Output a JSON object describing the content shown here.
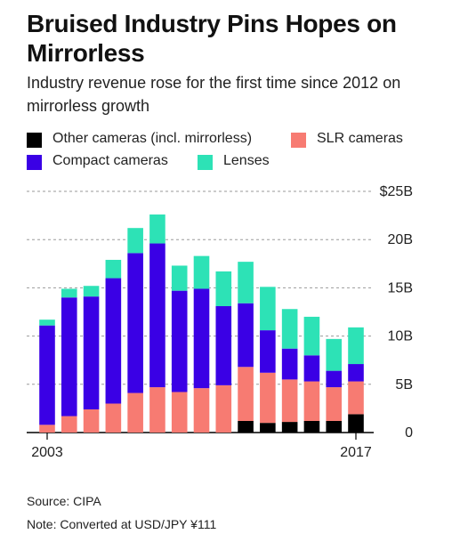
{
  "header": {
    "title": "Bruised Industry Pins Hopes on Mirrorless",
    "subtitle": "Industry revenue rose for the first time since 2012 on mirrorless growth"
  },
  "legend": [
    {
      "key": "other",
      "label": "Other cameras (incl. mirrorless)",
      "color": "#000000"
    },
    {
      "key": "slr",
      "label": "SLR cameras",
      "color": "#f77b72"
    },
    {
      "key": "compact",
      "label": "Compact cameras",
      "color": "#3a00e5"
    },
    {
      "key": "lenses",
      "label": "Lenses",
      "color": "#2de2b6"
    }
  ],
  "footer": {
    "source": "Source: CIPA",
    "note": "Note: Converted at USD/JPY ¥111"
  },
  "chart_data": {
    "type": "bar",
    "stacked": true,
    "categories": [
      "2003",
      "2004",
      "2005",
      "2006",
      "2007",
      "2008",
      "2009",
      "2010",
      "2011",
      "2012",
      "2013",
      "2014",
      "2015",
      "2016",
      "2017"
    ],
    "x_tick_labels": [
      "2003",
      "",
      "",
      "",
      "",
      "",
      "",
      "",
      "",
      "",
      "",
      "",
      "",
      "",
      "2017"
    ],
    "series": [
      {
        "name": "Other cameras (incl. mirrorless)",
        "color": "#000000",
        "values": [
          0,
          0,
          0,
          0,
          0,
          0,
          0,
          0,
          0,
          1.2,
          1.0,
          1.1,
          1.2,
          1.2,
          1.9
        ]
      },
      {
        "name": "SLR cameras",
        "color": "#f77b72",
        "values": [
          0.8,
          1.7,
          2.4,
          3.0,
          4.1,
          4.7,
          4.2,
          4.6,
          4.9,
          5.6,
          5.2,
          4.4,
          4.1,
          3.5,
          3.4
        ]
      },
      {
        "name": "Compact cameras",
        "color": "#3a00e5",
        "values": [
          10.3,
          12.3,
          11.7,
          13.0,
          14.5,
          14.9,
          10.5,
          10.3,
          8.2,
          6.6,
          4.4,
          3.2,
          2.7,
          1.7,
          1.8
        ]
      },
      {
        "name": "Lenses",
        "color": "#2de2b6",
        "values": [
          0.6,
          0.9,
          1.1,
          1.9,
          2.6,
          3.0,
          2.6,
          3.4,
          3.6,
          4.3,
          4.5,
          4.1,
          4.0,
          3.3,
          3.8
        ]
      }
    ],
    "y_ticks": [
      {
        "value": 0,
        "label": "0"
      },
      {
        "value": 5,
        "label": "5B"
      },
      {
        "value": 10,
        "label": "10B"
      },
      {
        "value": 15,
        "label": "15B"
      },
      {
        "value": 20,
        "label": "20B"
      },
      {
        "value": 25,
        "label": "$25B"
      }
    ],
    "ylim": [
      0,
      25
    ],
    "grid": true,
    "legend_position": "top"
  }
}
